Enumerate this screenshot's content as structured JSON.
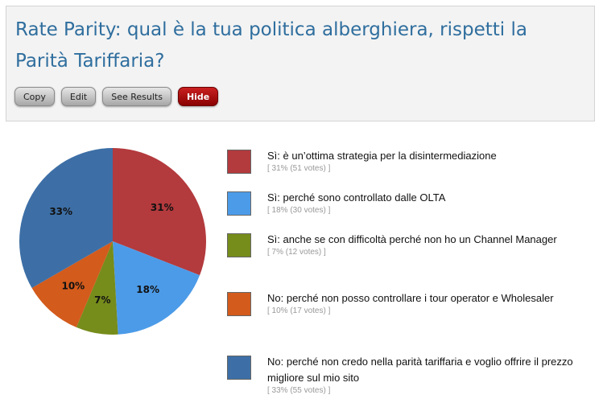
{
  "poll": {
    "title": "Rate Parity: qual è la tua politica alberghiera, rispetti la Parità Tariffaria?",
    "buttons": {
      "copy": "Copy",
      "edit": "Edit",
      "see_results": "See Results",
      "hide": "Hide"
    }
  },
  "legend": [
    {
      "label": "Sì: è un’ottima strategia per la disintermediazione",
      "stats": "[ 31% (51 votes) ]",
      "color": "#b33a3d"
    },
    {
      "label": "Sì: perché sono controllato dalle OLTA",
      "stats": "[ 18% (30 votes) ]",
      "color": "#4c9be8"
    },
    {
      "label": "Sì: anche se con difficoltà perché non ho un Channel Manager",
      "stats": "[ 7% (12 votes) ]",
      "color": "#768c1b"
    },
    {
      "label": "No: perché non posso controllare i tour operator e Wholesaler",
      "stats": "[ 10% (17 votes) ]",
      "color": "#d35b1c"
    },
    {
      "label": "No: perché non credo nella parità tariffaria e voglio offrire il prezzo migliore sul mio sito",
      "stats": "[ 33% (55 votes) ]",
      "color": "#3d6fa6"
    }
  ],
  "chart_data": {
    "type": "pie",
    "categories": [
      "Sì: è un’ottima strategia per la disintermediazione",
      "Sì: perché sono controllato dalle OLTA",
      "Sì: anche se con difficoltà perché non ho un Channel Manager",
      "No: perché non posso controllare i tour operator e Wholesaler",
      "No: perché non credo nella parità tariffaria e voglio offrire il prezzo migliore sul mio sito"
    ],
    "values": [
      51,
      30,
      12,
      17,
      55
    ],
    "percent_labels": [
      "31%",
      "18%",
      "7%",
      "10%",
      "33%"
    ],
    "colors": [
      "#b33a3d",
      "#4c9be8",
      "#768c1b",
      "#d35b1c",
      "#3d6fa6"
    ]
  }
}
